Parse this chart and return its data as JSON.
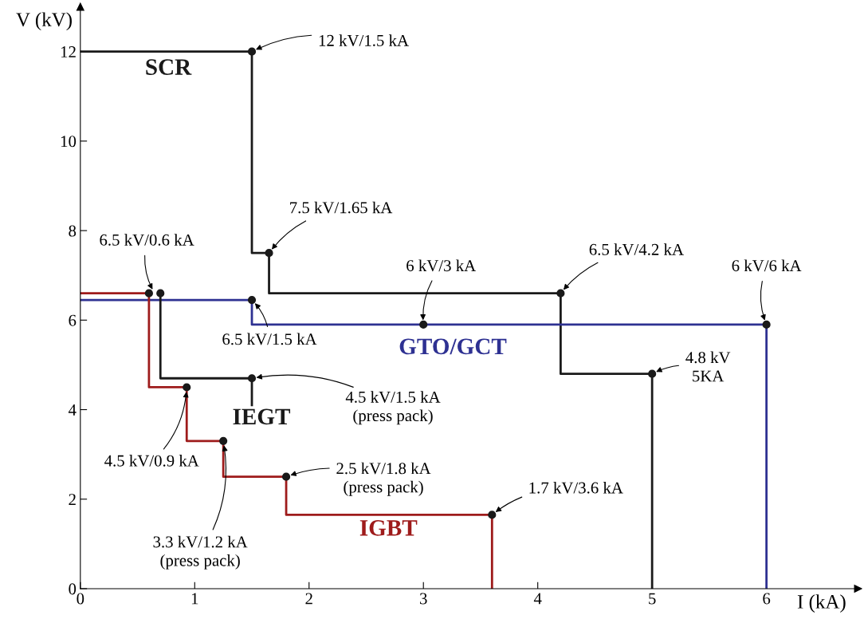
{
  "chart_data": {
    "type": "line",
    "xlabel": "I (kA)",
    "ylabel": "V (kV)",
    "xlim": [
      0,
      6.8
    ],
    "ylim": [
      0,
      13
    ],
    "xticks": [
      0,
      1,
      2,
      3,
      4,
      5,
      6
    ],
    "yticks": [
      0,
      2,
      4,
      6,
      8,
      10,
      12
    ],
    "grid": false,
    "legend": false,
    "line_style": "solid",
    "marker": "none",
    "series": [
      {
        "name": "SCR",
        "color": "#1a1a1a",
        "x": [
          0,
          1.5,
          1.5,
          1.65,
          1.65,
          4.2,
          4.2,
          5,
          5
        ],
        "values": [
          12,
          12,
          7.5,
          7.5,
          6.6,
          6.6,
          4.8,
          4.8,
          0
        ]
      },
      {
        "name": "GTO/GCT",
        "color": "#2e3192",
        "x": [
          0,
          1.5,
          1.5,
          6,
          6
        ],
        "values": [
          6.45,
          6.45,
          5.9,
          5.9,
          0
        ]
      },
      {
        "name": "IEGT",
        "color": "#1a1a1a",
        "x": [
          0.7,
          0.7,
          1.5,
          1.5
        ],
        "values": [
          6.6,
          4.7,
          4.7,
          4.1
        ]
      },
      {
        "name": "IGBT",
        "color": "#9e1b1b",
        "x": [
          0,
          0.6,
          0.6,
          0.93,
          0.93,
          1.25,
          1.25,
          1.8,
          1.8,
          3.6,
          3.6
        ],
        "values": [
          6.6,
          6.6,
          4.5,
          4.5,
          3.3,
          3.3,
          2.5,
          2.5,
          1.65,
          1.65,
          0
        ]
      },
      {
        "type": "scatter",
        "marker": "circle",
        "color": "#1a1a1a",
        "x": [
          1.5,
          1.65,
          0.6,
          0.7,
          3,
          4.2,
          6,
          1.5,
          5,
          1.5,
          0.93,
          1.25,
          1.8,
          3.6
        ],
        "values": [
          12,
          7.5,
          6.6,
          6.6,
          5.9,
          6.6,
          5.9,
          6.45,
          4.8,
          4.7,
          4.5,
          3.3,
          2.5,
          1.65
        ]
      }
    ],
    "annotations": [
      {
        "text": "12 kV/1.5 kA",
        "x": 1.5,
        "y": 12
      },
      {
        "text": "7.5 kV/1.65 kA",
        "x": 1.65,
        "y": 7.5
      },
      {
        "text": "6.5 kV/0.6 kA",
        "x": 0.65,
        "y": 6.6
      },
      {
        "text": "6 kV/3 kA",
        "x": 3,
        "y": 5.9
      },
      {
        "text": "6.5 kV/4.2 kA",
        "x": 4.2,
        "y": 6.6
      },
      {
        "text": "6 kV/6 kA",
        "x": 6,
        "y": 5.9
      },
      {
        "text": "6.5 kV/1.5 kA",
        "x": 1.5,
        "y": 6.45
      },
      {
        "text": "4.8 kV\n5KA",
        "x": 5,
        "y": 4.8
      },
      {
        "text": "4.5 kV/1.5 kA\n(press pack)",
        "x": 1.5,
        "y": 4.7
      },
      {
        "text": "4.5 kV/0.9 kA",
        "x": 0.93,
        "y": 4.5
      },
      {
        "text": "3.3 kV/1.2 kA\n(press pack)",
        "x": 1.25,
        "y": 3.3
      },
      {
        "text": "2.5 kV/1.8 kA\n(press pack)",
        "x": 1.8,
        "y": 2.5
      },
      {
        "text": "1.7 kV/3.6 kA",
        "x": 3.6,
        "y": 1.65
      }
    ]
  }
}
